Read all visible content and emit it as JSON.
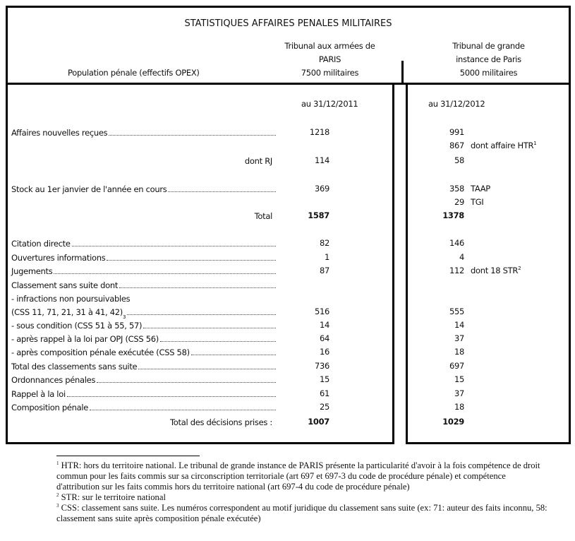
{
  "title": "STATISTIQUES AFFAIRES PENALES MILITAIRES",
  "header": {
    "row_label": "Population pénale (effectifs OPEX)",
    "col1": {
      "line1": "Tribunal aux armées de",
      "line2": "PARIS",
      "population": "7500 militaires",
      "date": "au 31/12/2011"
    },
    "col2": {
      "line1": "Tribunal de grande",
      "line2": "instance de Paris",
      "population": "5000 militaires",
      "date": "au 31/12/2012"
    }
  },
  "rows": [
    {
      "label": "Affaires nouvelles reçues",
      "dots": true,
      "v1": "1218",
      "v2": "991"
    },
    {
      "label": "",
      "v1": "",
      "v2": "867",
      "note": "dont affaire HTR",
      "note_sup": "1"
    },
    {
      "label": "dont RJ",
      "align": "right",
      "v1": "114",
      "v2": "58"
    },
    {
      "label": "Stock au 1er janvier de l'année en cours",
      "dots": true,
      "v1": "369",
      "v2": "358",
      "note": "TAAP"
    },
    {
      "label": "",
      "v1": "",
      "v2": "29",
      "note": "TGI"
    },
    {
      "label": "Total",
      "align": "right",
      "bold_values": true,
      "v1": "1587",
      "v2": "1378"
    },
    {
      "label": "Citation directe",
      "dots": true,
      "v1": "82",
      "v2": "146"
    },
    {
      "label": "Ouvertures informations",
      "dots": true,
      "v1": "1",
      "v2": "4"
    },
    {
      "label": "Jugements",
      "dots": true,
      "v1": "87",
      "v2": "112",
      "note": "dont 18 STR",
      "note_sup": "2"
    },
    {
      "label": "Classement sans suite dont",
      "dots": true,
      "v1": "",
      "v2": ""
    },
    {
      "label": "- infractions non poursuivables",
      "v1": "",
      "v2": ""
    },
    {
      "label": "(CSS 11, 71, 21, 31 à 41, 42)",
      "label_sup": "3",
      "dots": true,
      "v1": "516",
      "v2": "555"
    },
    {
      "label": "- sous condition (CSS 51 à 55, 57)",
      "dots": true,
      "v1": "14",
      "v2": "14"
    },
    {
      "label": "- après rappel à la loi par OPJ (CSS 56)",
      "dots": true,
      "v1": "64",
      "v2": "37"
    },
    {
      "label": "- après composition pénale exécutée (CSS 58)",
      "dots": true,
      "v1": "16",
      "v2": "18"
    },
    {
      "label": "Total des classements sans suite",
      "dots": true,
      "v1": "736",
      "v2": "697"
    },
    {
      "label": "Ordonnances pénales",
      "dots": true,
      "v1": "15",
      "v2": "15"
    },
    {
      "label": "Rappel à la loi",
      "dots": true,
      "v1": "61",
      "v2": "37"
    },
    {
      "label": "Composition pénale",
      "dots": true,
      "v1": "25",
      "v2": "18"
    },
    {
      "label": "Total des décisions prises :",
      "align": "right",
      "bold_values": true,
      "v1": "1007",
      "v2": "1029"
    }
  ],
  "footnotes": [
    {
      "num": "1",
      "text": "HTR: hors du territoire national. Le tribunal de grande instance de PARIS présente la particularité d'avoir à la fois compétence de droit commun pour les faits commis sur sa circonscription territoriale (art 697 et 697-3 du code de procédure pénale) et compétence d'attribution sur les faits commis hors du territoire national (art 697-4 du code de procédure pénale)"
    },
    {
      "num": "2",
      "text": "STR: sur le territoire national"
    },
    {
      "num": "3",
      "text": "CSS: classement sans suite. Les numéros correspondent au motif juridique du classement sans suite (ex: 71: auteur des faits inconnu, 58: classement sans suite après composition pénale exécutée)"
    }
  ]
}
